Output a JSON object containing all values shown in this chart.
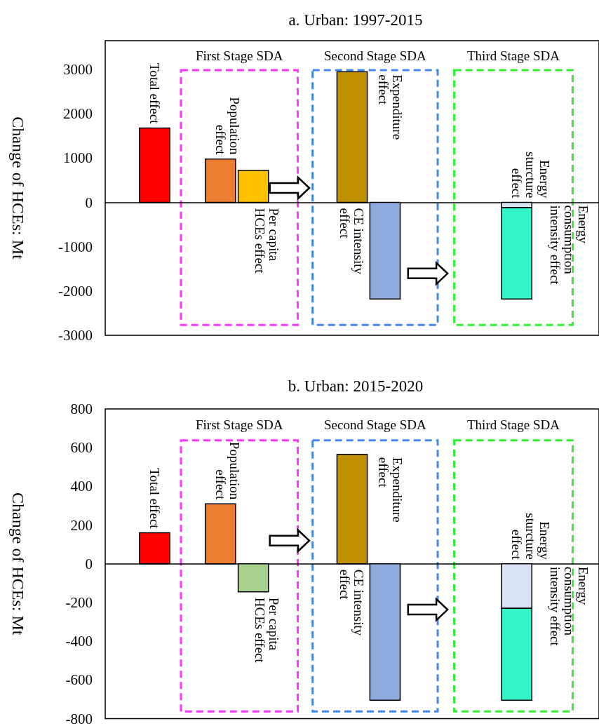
{
  "chart_data": [
    {
      "type": "bar",
      "title": "a. Urban: 1997-2015",
      "ylabel": "Change of HCEs: Mt",
      "categories": [
        null,
        null,
        null,
        null,
        null,
        null,
        null,
        null,
        null,
        null,
        null,
        null,
        null,
        null,
        null
      ],
      "series": [
        {
          "name": "Total effect",
          "color": "#ff0000",
          "values": [
            null,
            1680,
            null,
            null,
            null,
            null,
            null,
            null,
            null,
            null,
            null,
            null,
            null,
            null,
            null
          ]
        },
        {
          "name": "Population effect",
          "color": "#ed7d31",
          "values": [
            null,
            null,
            null,
            980,
            null,
            null,
            null,
            null,
            null,
            null,
            null,
            null,
            null,
            null,
            null
          ]
        },
        {
          "name": "Per capita HCEs effect",
          "color": "#ffc000",
          "values": [
            null,
            null,
            null,
            null,
            720,
            null,
            null,
            null,
            null,
            null,
            null,
            null,
            null,
            null,
            null
          ]
        },
        {
          "name": "Expenditure effect",
          "color": "#bf9000",
          "values": [
            null,
            null,
            null,
            null,
            null,
            null,
            null,
            2950,
            null,
            null,
            null,
            null,
            null,
            null,
            null
          ]
        },
        {
          "name": "CE intensity effect",
          "color": "#8faadc",
          "values": [
            null,
            null,
            null,
            null,
            null,
            null,
            null,
            null,
            -2180,
            null,
            null,
            null,
            null,
            null,
            null
          ]
        },
        {
          "name": "Energy sturcture effect",
          "color": "#dae3f3",
          "values": [
            null,
            null,
            null,
            null,
            null,
            null,
            null,
            null,
            null,
            null,
            null,
            null,
            -120,
            null,
            null
          ]
        },
        {
          "name": "Energy consumption intensity effect",
          "color": "#33f5c8",
          "values": [
            null,
            null,
            null,
            null,
            null,
            null,
            null,
            null,
            null,
            null,
            null,
            null,
            -2060,
            null,
            null
          ],
          "base": [
            null,
            null,
            null,
            null,
            null,
            null,
            null,
            null,
            null,
            null,
            null,
            null,
            -120,
            null,
            null
          ]
        }
      ],
      "ylim": [
        -3000,
        3650
      ],
      "yticks": [
        -3000,
        -2000,
        -1000,
        0,
        1000,
        2000,
        3000
      ],
      "annotations": [
        "First Stage SDA",
        "Second Stage SDA",
        "Third Stage SDA"
      ]
    },
    {
      "type": "bar",
      "title": "b. Urban: 2015-2020",
      "ylabel": "Change of HCEs: Mt",
      "categories": [
        null,
        null,
        null,
        null,
        null,
        null,
        null,
        null,
        null,
        null,
        null,
        null,
        null,
        null,
        null
      ],
      "series": [
        {
          "name": "Total effect",
          "color": "#ff0000",
          "values": [
            null,
            160,
            null,
            null,
            null,
            null,
            null,
            null,
            null,
            null,
            null,
            null,
            null,
            null,
            null
          ]
        },
        {
          "name": "Population effect",
          "color": "#ed7d31",
          "values": [
            null,
            null,
            null,
            310,
            null,
            null,
            null,
            null,
            null,
            null,
            null,
            null,
            null,
            null,
            null
          ]
        },
        {
          "name": "Per capita HCEs effect",
          "color": "#a9d18e",
          "values": [
            null,
            null,
            null,
            null,
            -145,
            null,
            null,
            null,
            null,
            null,
            null,
            null,
            null,
            null,
            null
          ]
        },
        {
          "name": "Expenditure effect",
          "color": "#bf9000",
          "values": [
            null,
            null,
            null,
            null,
            null,
            null,
            null,
            565,
            null,
            null,
            null,
            null,
            null,
            null,
            null
          ]
        },
        {
          "name": "CE intensity effect",
          "color": "#8faadc",
          "values": [
            null,
            null,
            null,
            null,
            null,
            null,
            null,
            null,
            -705,
            null,
            null,
            null,
            null,
            null,
            null
          ]
        },
        {
          "name": "Energy sturcture effect",
          "color": "#dae3f3",
          "values": [
            null,
            null,
            null,
            null,
            null,
            null,
            null,
            null,
            null,
            null,
            null,
            null,
            -230,
            null,
            null
          ]
        },
        {
          "name": "Energy consumption intensity effect",
          "color": "#33f5c8",
          "values": [
            null,
            null,
            null,
            null,
            null,
            null,
            null,
            null,
            null,
            null,
            null,
            null,
            -475,
            null,
            null
          ],
          "base": [
            null,
            null,
            null,
            null,
            null,
            null,
            null,
            null,
            null,
            null,
            null,
            null,
            -230,
            null,
            null
          ]
        }
      ],
      "ylim": [
        -800,
        800
      ],
      "yticks": [
        -800,
        -600,
        -400,
        -200,
        0,
        200,
        400,
        600,
        800
      ],
      "annotations": [
        "First Stage SDA",
        "Second Stage SDA",
        "Third Stage SDA"
      ]
    }
  ]
}
